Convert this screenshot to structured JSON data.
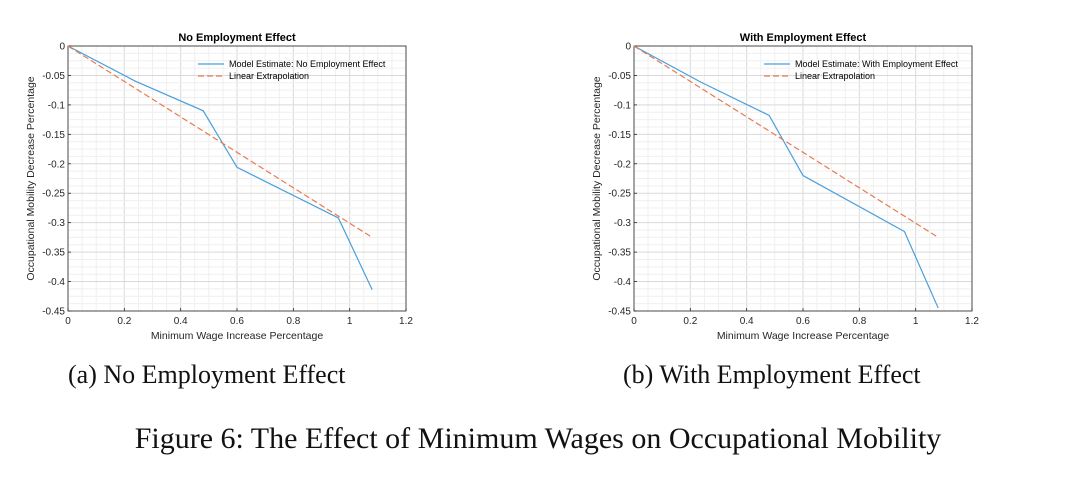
{
  "figure_caption": "Figure 6: The Effect of Minimum Wages on Occupational Mobility",
  "colors": {
    "model": "#4a9fdc",
    "linear": "#e87a52",
    "grid": "#e2e2e2",
    "axis": "#262626"
  },
  "chart_data": [
    {
      "type": "line",
      "title": "No Employment Effect",
      "subcaption": "(a) No Employment Effect",
      "xlabel": "Minimum Wage Increase Percentage",
      "ylabel": "Occupational Mobility Decrease Percentage",
      "xlim": [
        0,
        1.2
      ],
      "ylim": [
        -0.45,
        0
      ],
      "xticks": [
        "0",
        "0.2",
        "0.4",
        "0.6",
        "0.8",
        "1",
        "1.2"
      ],
      "yticks": [
        "0",
        "-0.05",
        "-0.1",
        "-0.15",
        "-0.2",
        "-0.25",
        "-0.3",
        "-0.35",
        "-0.4",
        "-0.45"
      ],
      "grid": true,
      "legend_position": "top-right",
      "series": [
        {
          "name": "Model Estimate: No Employment Effect",
          "style": "solid",
          "x": [
            0,
            0.24,
            0.48,
            0.6,
            0.96,
            1.08
          ],
          "y": [
            0,
            -0.06,
            -0.11,
            -0.206,
            -0.292,
            -0.414
          ]
        },
        {
          "name": "Linear Extrapolation",
          "style": "dashed",
          "x": [
            0,
            1.08
          ],
          "y": [
            0,
            -0.325
          ]
        }
      ]
    },
    {
      "type": "line",
      "title": "With Employment Effect",
      "subcaption": "(b) With Employment Effect",
      "xlabel": "Minimum Wage Increase Percentage",
      "ylabel": "Occupational Mobility Decrease Percentage",
      "xlim": [
        0,
        1.2
      ],
      "ylim": [
        -0.45,
        0
      ],
      "xticks": [
        "0",
        "0.2",
        "0.4",
        "0.6",
        "0.8",
        "1",
        "1.2"
      ],
      "yticks": [
        "0",
        "-0.05",
        "-0.1",
        "-0.15",
        "-0.2",
        "-0.25",
        "-0.3",
        "-0.35",
        "-0.4",
        "-0.45"
      ],
      "grid": true,
      "legend_position": "top-right",
      "series": [
        {
          "name": "Model Estimate: With Employment Effect",
          "style": "solid",
          "x": [
            0,
            0.24,
            0.48,
            0.6,
            0.96,
            1.08
          ],
          "y": [
            0,
            -0.062,
            -0.118,
            -0.22,
            -0.315,
            -0.445
          ]
        },
        {
          "name": "Linear Extrapolation",
          "style": "dashed",
          "x": [
            0,
            1.08
          ],
          "y": [
            0,
            -0.325
          ]
        }
      ]
    }
  ]
}
